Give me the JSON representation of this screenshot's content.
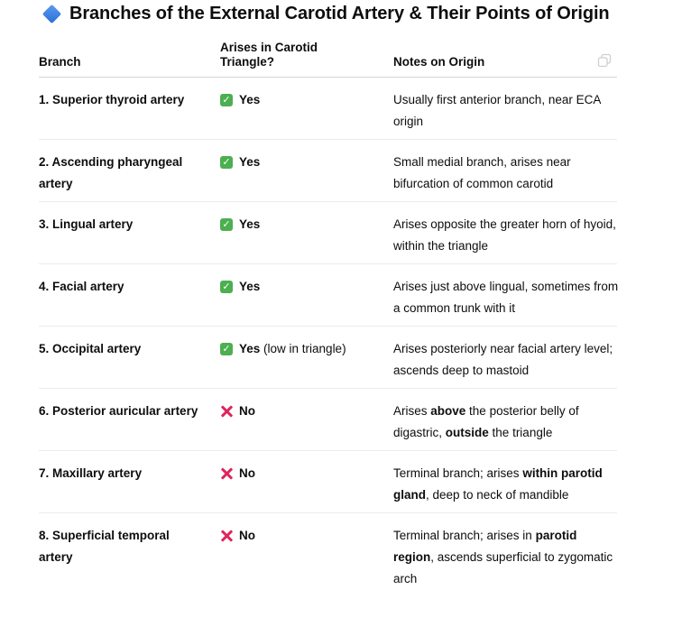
{
  "title": "Branches of the External Carotid Artery & Their Points of Origin",
  "title_icon": "blue-diamond-icon",
  "headers": {
    "branch": "Branch",
    "arises_line1": "Arises in Carotid",
    "arises_line2": "Triangle?",
    "notes": "Notes on Origin"
  },
  "rows": [
    {
      "branch": "1. Superior thyroid artery",
      "status": "check",
      "answer": "Yes",
      "extra": "",
      "notes": [
        {
          "t": "Usually first anterior branch, near ECA origin",
          "b": false
        }
      ]
    },
    {
      "branch": "2. Ascending pharyngeal artery",
      "status": "check",
      "answer": "Yes",
      "extra": "",
      "notes": [
        {
          "t": "Small medial branch, arises near bifurcation of common carotid",
          "b": false
        }
      ]
    },
    {
      "branch": "3. Lingual artery",
      "status": "check",
      "answer": "Yes",
      "extra": "",
      "notes": [
        {
          "t": "Arises opposite the greater horn of hyoid, within the triangle",
          "b": false
        }
      ]
    },
    {
      "branch": "4. Facial artery",
      "status": "check",
      "answer": "Yes",
      "extra": "",
      "notes": [
        {
          "t": "Arises just above lingual, sometimes from a common trunk with it",
          "b": false
        }
      ]
    },
    {
      "branch": "5. Occipital artery",
      "status": "check",
      "answer": "Yes",
      "extra": " (low in triangle)",
      "notes": [
        {
          "t": "Arises posteriorly near facial artery level; ascends deep to mastoid",
          "b": false
        }
      ]
    },
    {
      "branch": "6. Posterior auricular artery",
      "status": "cross",
      "answer": "No",
      "extra": "",
      "notes": [
        {
          "t": "Arises ",
          "b": false
        },
        {
          "t": "above",
          "b": true
        },
        {
          "t": " the posterior belly of digastric, ",
          "b": false
        },
        {
          "t": "outside",
          "b": true
        },
        {
          "t": " the triangle",
          "b": false
        }
      ]
    },
    {
      "branch": "7. Maxillary artery",
      "status": "cross",
      "answer": "No",
      "extra": "",
      "notes": [
        {
          "t": "Terminal branch; arises ",
          "b": false
        },
        {
          "t": "within parotid gland",
          "b": true
        },
        {
          "t": ", deep to neck of mandible",
          "b": false
        }
      ]
    },
    {
      "branch": "8. Superficial temporal artery",
      "status": "cross",
      "answer": "No",
      "extra": "",
      "notes": [
        {
          "t": "Terminal branch; arises in ",
          "b": false
        },
        {
          "t": "parotid region",
          "b": true
        },
        {
          "t": ", ascends superficial to zygomatic arch",
          "b": false
        }
      ]
    }
  ]
}
